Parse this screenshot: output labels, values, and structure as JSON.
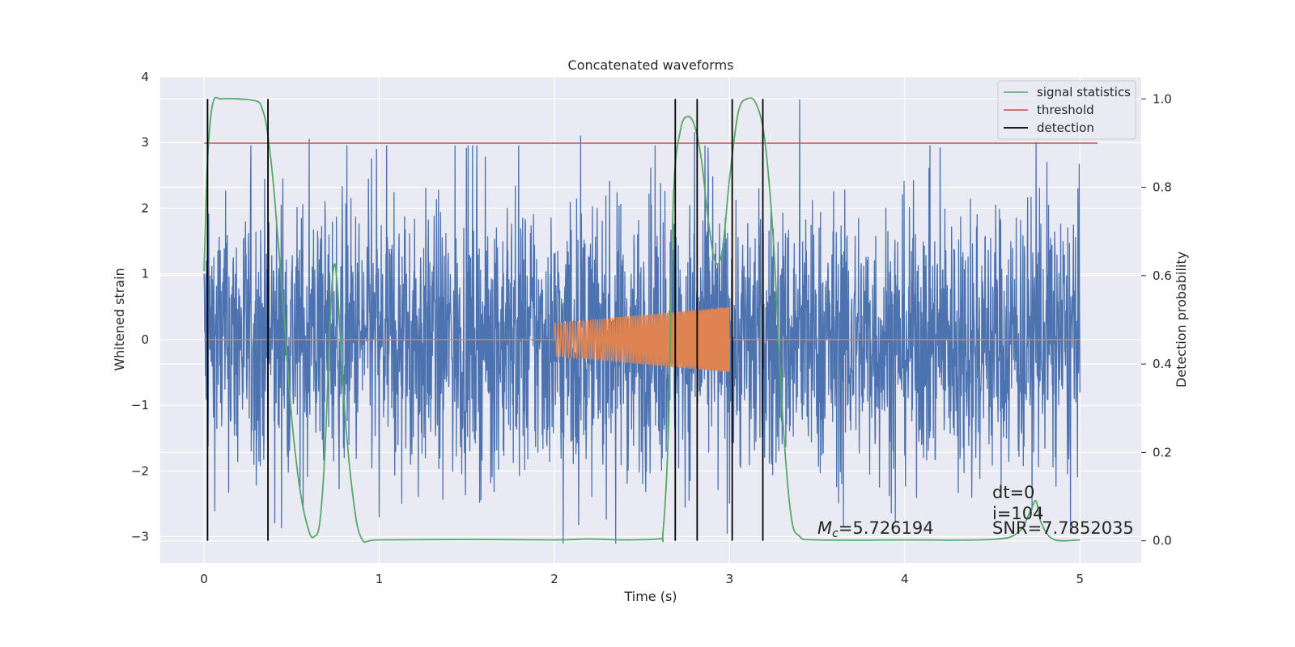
{
  "chart_data": {
    "type": "line",
    "title": "Concatenated waveforms",
    "xlabel": "Time (s)",
    "ylabel_left": "Whitened strain",
    "ylabel_right": "Detection probability",
    "xlim": [
      -0.25,
      5.35
    ],
    "ylim_left": [
      -3.4,
      4.0
    ],
    "ylim_right": [
      -0.05,
      1.05
    ],
    "x_ticks": [
      0,
      1,
      2,
      3,
      4,
      5
    ],
    "y_ticks_left": [
      -3,
      -2,
      -1,
      0,
      1,
      2,
      3,
      4
    ],
    "y_ticks_right": [
      0.0,
      0.2,
      0.4,
      0.6,
      0.8,
      1.0
    ],
    "grid": true,
    "legend_position": "top-right",
    "legend": [
      "signal statistics",
      "threshold",
      "detection"
    ],
    "colors": {
      "strain": "#4c72b0",
      "injection": "#dd8452",
      "signal_statistics": "#55a868",
      "threshold": "#c44e52",
      "detection": "#000000",
      "background": "#eaeaf2",
      "grid": "#ffffff"
    },
    "series": [
      {
        "name": "signal statistics",
        "axis": "right",
        "x": [
          0,
          0.02,
          0.05,
          0.1,
          0.2,
          0.3,
          0.33,
          0.36,
          0.4,
          0.45,
          0.5,
          0.55,
          0.6,
          0.63,
          0.66,
          0.69,
          0.72,
          0.74,
          0.76,
          0.8,
          0.85,
          0.9,
          1.0,
          1.5,
          2.0,
          2.2,
          2.4,
          2.6,
          2.62,
          2.65,
          2.68,
          2.72,
          2.76,
          2.8,
          2.84,
          2.88,
          2.92,
          2.96,
          3.0,
          3.05,
          3.1,
          3.15,
          3.2,
          3.25,
          3.3,
          3.35,
          3.4,
          3.5,
          4.0,
          4.5,
          4.65,
          4.72,
          4.75,
          4.78,
          4.85,
          5.0
        ],
        "values": [
          0.61,
          0.86,
          0.99,
          1.0,
          1.0,
          0.995,
          0.98,
          0.93,
          0.79,
          0.54,
          0.28,
          0.11,
          0.02,
          0.01,
          0.04,
          0.2,
          0.5,
          0.62,
          0.58,
          0.31,
          0.1,
          0.005,
          0.002,
          0.003,
          0.002,
          0.004,
          0.002,
          0.005,
          0.02,
          0.24,
          0.78,
          0.93,
          0.96,
          0.94,
          0.86,
          0.72,
          0.63,
          0.66,
          0.82,
          0.97,
          1.0,
          0.99,
          0.91,
          0.68,
          0.3,
          0.06,
          0.01,
          0.002,
          0.002,
          0.003,
          0.02,
          0.07,
          0.09,
          0.04,
          0.003,
          0.002
        ]
      },
      {
        "name": "threshold",
        "axis": "right",
        "x": [
          0,
          5.1
        ],
        "values": [
          0.9,
          0.9
        ]
      }
    ],
    "strain": {
      "axis": "left",
      "x_range": [
        0,
        5
      ],
      "typical_amplitude": 1.2,
      "spikes": [
        {
          "x": 0.45,
          "y": 2.45
        },
        {
          "x": 0.6,
          "y": 3.05
        },
        {
          "x": 1.0,
          "y": -2.7
        },
        {
          "x": 2.05,
          "y": -3.1
        },
        {
          "x": 2.15,
          "y": 3.1
        },
        {
          "x": 2.35,
          "y": -3.1
        },
        {
          "x": 2.8,
          "y": 3.15
        },
        {
          "x": 3.4,
          "y": 3.65
        },
        {
          "x": 3.65,
          "y": -2.85
        },
        {
          "x": 4.75,
          "y": 3.0
        }
      ]
    },
    "injection": {
      "axis": "left",
      "x_range": [
        0,
        5
      ],
      "chirp_start": 2.0,
      "chirp_end": 3.0,
      "amplitude_start": 0.25,
      "amplitude_end": 0.5
    },
    "detections": [
      0.02,
      0.365,
      2.69,
      2.815,
      3.015,
      3.19
    ],
    "annotations": {
      "mc_symbol": "M",
      "mc_subscript": "c",
      "mc_value": "=5.726194",
      "dt": "dt=0",
      "i": "i=104",
      "snr": "SNR=7.7852035"
    }
  }
}
